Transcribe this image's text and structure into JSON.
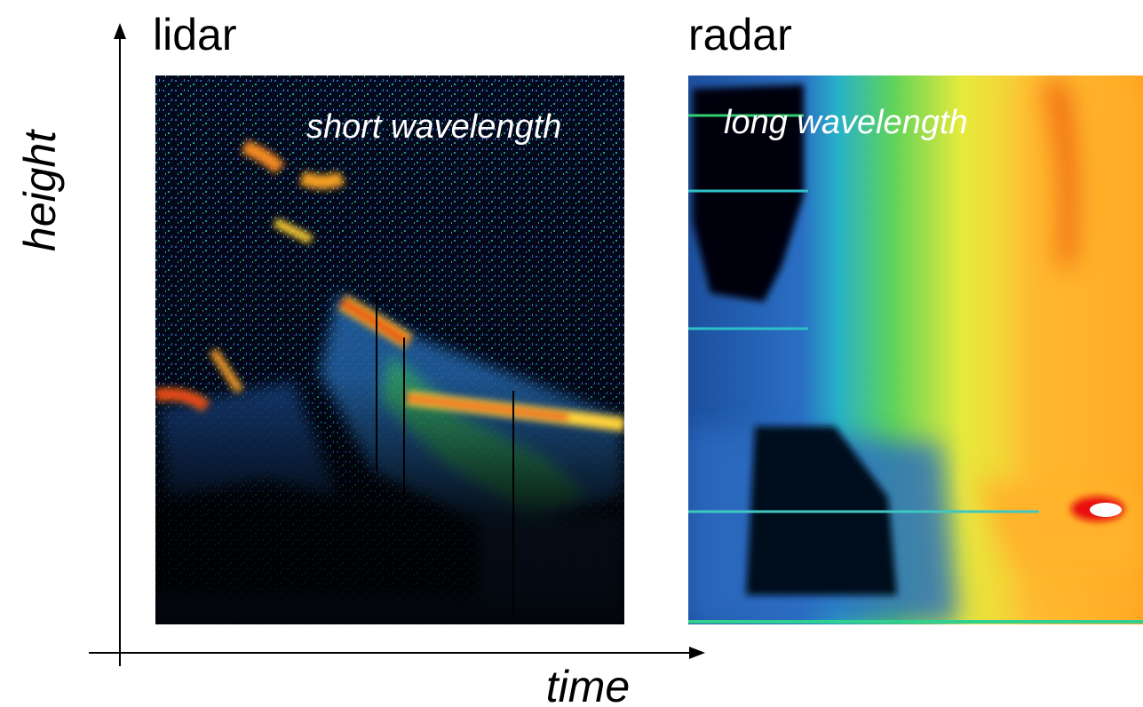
{
  "panels": [
    {
      "title": "lidar",
      "caption": "short wavelength"
    },
    {
      "title": "radar",
      "caption": "long wavelength"
    }
  ],
  "axes": {
    "y_label": "height",
    "x_label": "time"
  }
}
